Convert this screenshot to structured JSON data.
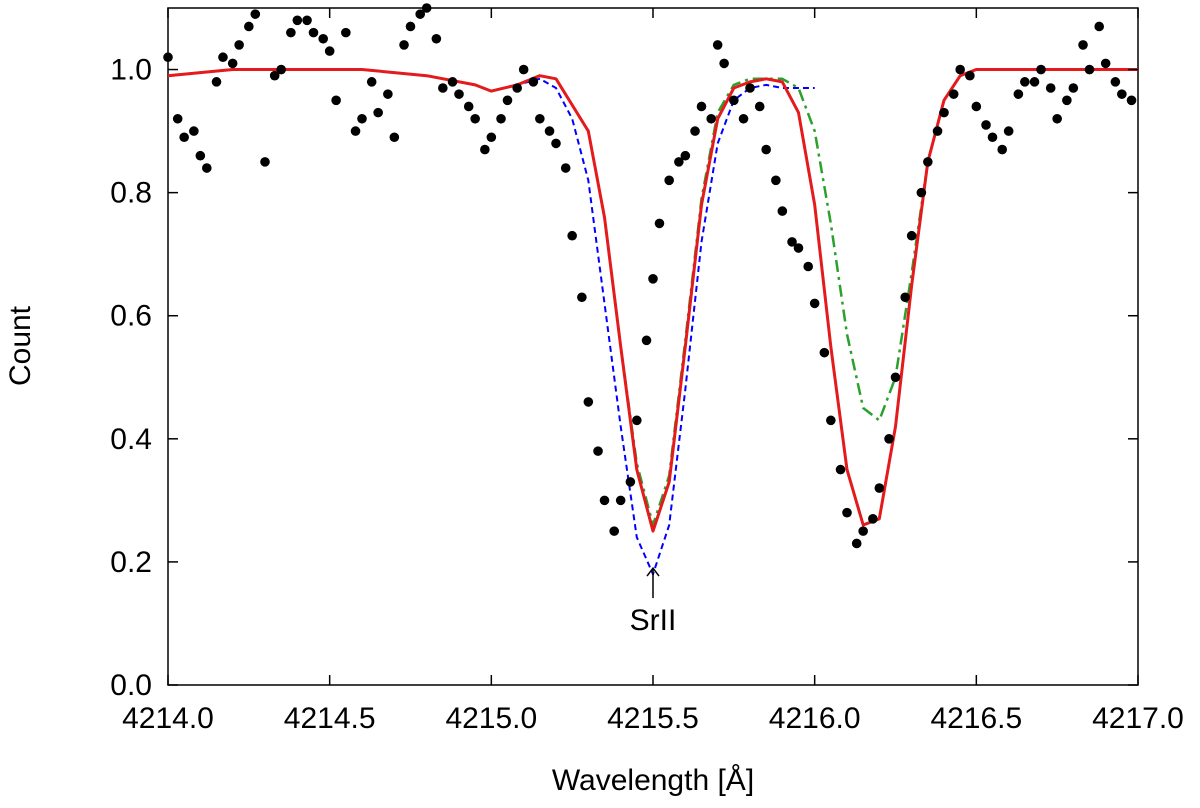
{
  "chart_data": {
    "type": "line",
    "xlabel": "Wavelength [Å]",
    "ylabel": "Count",
    "xlim": [
      4214.0,
      4217.0
    ],
    "ylim": [
      0.0,
      1.1
    ],
    "x_ticks": [
      4214.0,
      4214.5,
      4215.0,
      4215.5,
      4216.0,
      4216.5,
      4217.0
    ],
    "x_tick_labels": [
      "4214.0",
      "4214.5",
      "4215.0",
      "4215.5",
      "4216.0",
      "4216.5",
      "4217.0"
    ],
    "y_ticks": [
      0.0,
      0.2,
      0.4,
      0.6,
      0.8,
      1.0
    ],
    "y_tick_labels": [
      "0.0",
      "0.2",
      "0.4",
      "0.6",
      "0.8",
      "1.0"
    ],
    "grid": false,
    "annotations": [
      {
        "text": "SrII",
        "x": 4215.5,
        "y": 0.14,
        "arrow_to": [
          4215.5,
          0.19
        ]
      }
    ],
    "series": [
      {
        "style": "solid",
        "color": "#e41a1c",
        "x": [
          4214.0,
          4214.2,
          4214.4,
          4214.6,
          4214.8,
          4214.95,
          4215.0,
          4215.08,
          4215.15,
          4215.2,
          4215.3,
          4215.35,
          4215.4,
          4215.45,
          4215.5,
          4215.55,
          4215.6,
          4215.65,
          4215.7,
          4215.75,
          4215.8,
          4215.85,
          4215.9,
          4215.95,
          4216.0,
          4216.05,
          4216.1,
          4216.15,
          4216.2,
          4216.25,
          4216.3,
          4216.35,
          4216.4,
          4216.45,
          4216.5,
          4216.6,
          4216.8,
          4217.0
        ],
        "y": [
          0.99,
          1.0,
          1.0,
          1.0,
          0.99,
          0.975,
          0.965,
          0.975,
          0.99,
          0.985,
          0.9,
          0.76,
          0.55,
          0.35,
          0.25,
          0.33,
          0.55,
          0.78,
          0.92,
          0.97,
          0.98,
          0.985,
          0.98,
          0.93,
          0.78,
          0.55,
          0.35,
          0.26,
          0.27,
          0.42,
          0.65,
          0.85,
          0.95,
          0.99,
          1.0,
          1.0,
          1.0,
          1.0
        ]
      },
      {
        "style": "dash-dot",
        "color": "#2ca02c",
        "x": [
          4214.0,
          4214.2,
          4214.4,
          4214.6,
          4214.8,
          4214.95,
          4215.0,
          4215.08,
          4215.15,
          4215.2,
          4215.3,
          4215.35,
          4215.4,
          4215.45,
          4215.5,
          4215.55,
          4215.6,
          4215.65,
          4215.7,
          4215.75,
          4215.8,
          4215.85,
          4215.9,
          4215.95,
          4216.0,
          4216.05,
          4216.1,
          4216.15,
          4216.2,
          4216.25,
          4216.3,
          4216.35,
          4216.4,
          4216.45,
          4216.5,
          4216.6,
          4216.8,
          4217.0
        ],
        "y": [
          0.99,
          1.0,
          1.0,
          1.0,
          0.99,
          0.975,
          0.965,
          0.975,
          0.99,
          0.985,
          0.9,
          0.76,
          0.55,
          0.36,
          0.26,
          0.34,
          0.56,
          0.79,
          0.93,
          0.975,
          0.985,
          0.985,
          0.985,
          0.97,
          0.9,
          0.75,
          0.57,
          0.45,
          0.43,
          0.5,
          0.67,
          0.85,
          0.95,
          0.99,
          1.0,
          1.0,
          1.0,
          1.0
        ]
      },
      {
        "style": "dashed",
        "color": "#0000ff",
        "x": [
          4214.0,
          4214.2,
          4214.4,
          4214.6,
          4214.8,
          4214.95,
          4215.0,
          4215.08,
          4215.15,
          4215.2,
          4215.25,
          4215.3,
          4215.35,
          4215.4,
          4215.45,
          4215.5,
          4215.55,
          4215.6,
          4215.65,
          4215.7,
          4215.75,
          4215.8,
          4215.85,
          4215.9,
          4216.0
        ],
        "y": [
          0.99,
          1.0,
          1.0,
          1.0,
          0.99,
          0.975,
          0.965,
          0.975,
          0.985,
          0.97,
          0.92,
          0.82,
          0.62,
          0.42,
          0.24,
          0.18,
          0.26,
          0.48,
          0.72,
          0.88,
          0.95,
          0.97,
          0.975,
          0.97,
          0.97
        ]
      },
      {
        "style": "points",
        "color": "#000000",
        "x": [
          4214.0,
          4214.03,
          4214.05,
          4214.08,
          4214.1,
          4214.12,
          4214.15,
          4214.17,
          4214.2,
          4214.22,
          4214.25,
          4214.27,
          4214.3,
          4214.33,
          4214.35,
          4214.38,
          4214.4,
          4214.43,
          4214.45,
          4214.48,
          4214.5,
          4214.52,
          4214.55,
          4214.58,
          4214.6,
          4214.63,
          4214.65,
          4214.68,
          4214.7,
          4214.73,
          4214.75,
          4214.78,
          4214.8,
          4214.83,
          4214.85,
          4214.88,
          4214.9,
          4214.93,
          4214.95,
          4214.98,
          4215.0,
          4215.03,
          4215.05,
          4215.08,
          4215.1,
          4215.13,
          4215.15,
          4215.18,
          4215.2,
          4215.23,
          4215.25,
          4215.28,
          4215.3,
          4215.33,
          4215.35,
          4215.38,
          4215.4,
          4215.43,
          4215.45,
          4215.48,
          4215.5,
          4215.52,
          4215.55,
          4215.58,
          4215.6,
          4215.63,
          4215.65,
          4215.68,
          4215.7,
          4215.72,
          4215.75,
          4215.78,
          4215.8,
          4215.83,
          4215.85,
          4215.88,
          4215.9,
          4215.93,
          4215.95,
          4215.98,
          4216.0,
          4216.03,
          4216.05,
          4216.08,
          4216.1,
          4216.13,
          4216.15,
          4216.18,
          4216.2,
          4216.23,
          4216.25,
          4216.28,
          4216.3,
          4216.33,
          4216.35,
          4216.38,
          4216.4,
          4216.43,
          4216.45,
          4216.48,
          4216.5,
          4216.53,
          4216.55,
          4216.58,
          4216.6,
          4216.63,
          4216.65,
          4216.68,
          4216.7,
          4216.73,
          4216.75,
          4216.78,
          4216.8,
          4216.83,
          4216.85,
          4216.88,
          4216.9,
          4216.93,
          4216.95,
          4216.98
        ],
        "y": [
          1.02,
          0.92,
          0.89,
          0.9,
          0.86,
          0.84,
          0.98,
          1.02,
          1.01,
          1.04,
          1.07,
          1.09,
          0.85,
          0.99,
          1.0,
          1.06,
          1.08,
          1.08,
          1.06,
          1.05,
          1.03,
          0.95,
          1.06,
          0.9,
          0.92,
          0.98,
          0.93,
          0.96,
          0.89,
          1.04,
          1.07,
          1.09,
          1.1,
          1.05,
          0.97,
          0.98,
          0.96,
          0.94,
          0.92,
          0.87,
          0.89,
          0.92,
          0.95,
          0.97,
          1.0,
          0.98,
          0.92,
          0.9,
          0.88,
          0.84,
          0.73,
          0.63,
          0.46,
          0.38,
          0.3,
          0.25,
          0.3,
          0.33,
          0.43,
          0.56,
          0.66,
          0.75,
          0.82,
          0.85,
          0.86,
          0.9,
          0.94,
          0.92,
          1.04,
          1.01,
          0.95,
          0.92,
          0.97,
          0.94,
          0.87,
          0.82,
          0.77,
          0.72,
          0.71,
          0.68,
          0.62,
          0.54,
          0.43,
          0.35,
          0.28,
          0.23,
          0.25,
          0.27,
          0.32,
          0.4,
          0.5,
          0.63,
          0.73,
          0.8,
          0.85,
          0.9,
          0.93,
          0.96,
          1.0,
          0.99,
          0.94,
          0.91,
          0.89,
          0.87,
          0.9,
          0.96,
          0.98,
          0.98,
          1.0,
          0.97,
          0.92,
          0.95,
          0.97,
          1.04,
          1.0,
          1.07,
          1.01,
          0.98,
          0.96,
          0.95
        ]
      }
    ]
  }
}
